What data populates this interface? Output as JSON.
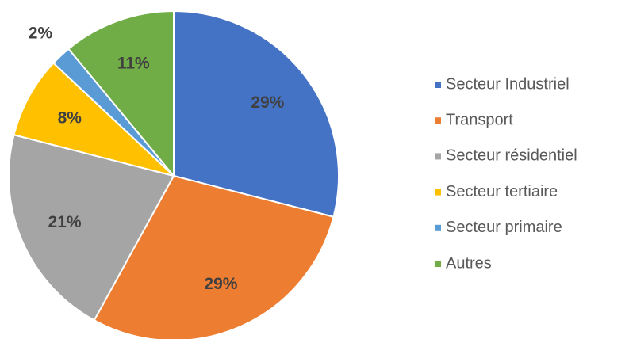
{
  "chart_data": {
    "type": "pie",
    "categories": [
      "Secteur Industriel",
      "Transport",
      "Secteur résidentiel",
      "Secteur tertiaire",
      "Secteur primaire",
      "Autres"
    ],
    "values": [
      29,
      29,
      21,
      8,
      2,
      11
    ],
    "value_labels": [
      "29%",
      "29%",
      "21%",
      "8%",
      "2%",
      "11%"
    ],
    "colors": [
      "#4472c4",
      "#ed7d31",
      "#a5a5a5",
      "#ffc000",
      "#5b9bd5",
      "#70ad47"
    ],
    "legend": "right"
  }
}
